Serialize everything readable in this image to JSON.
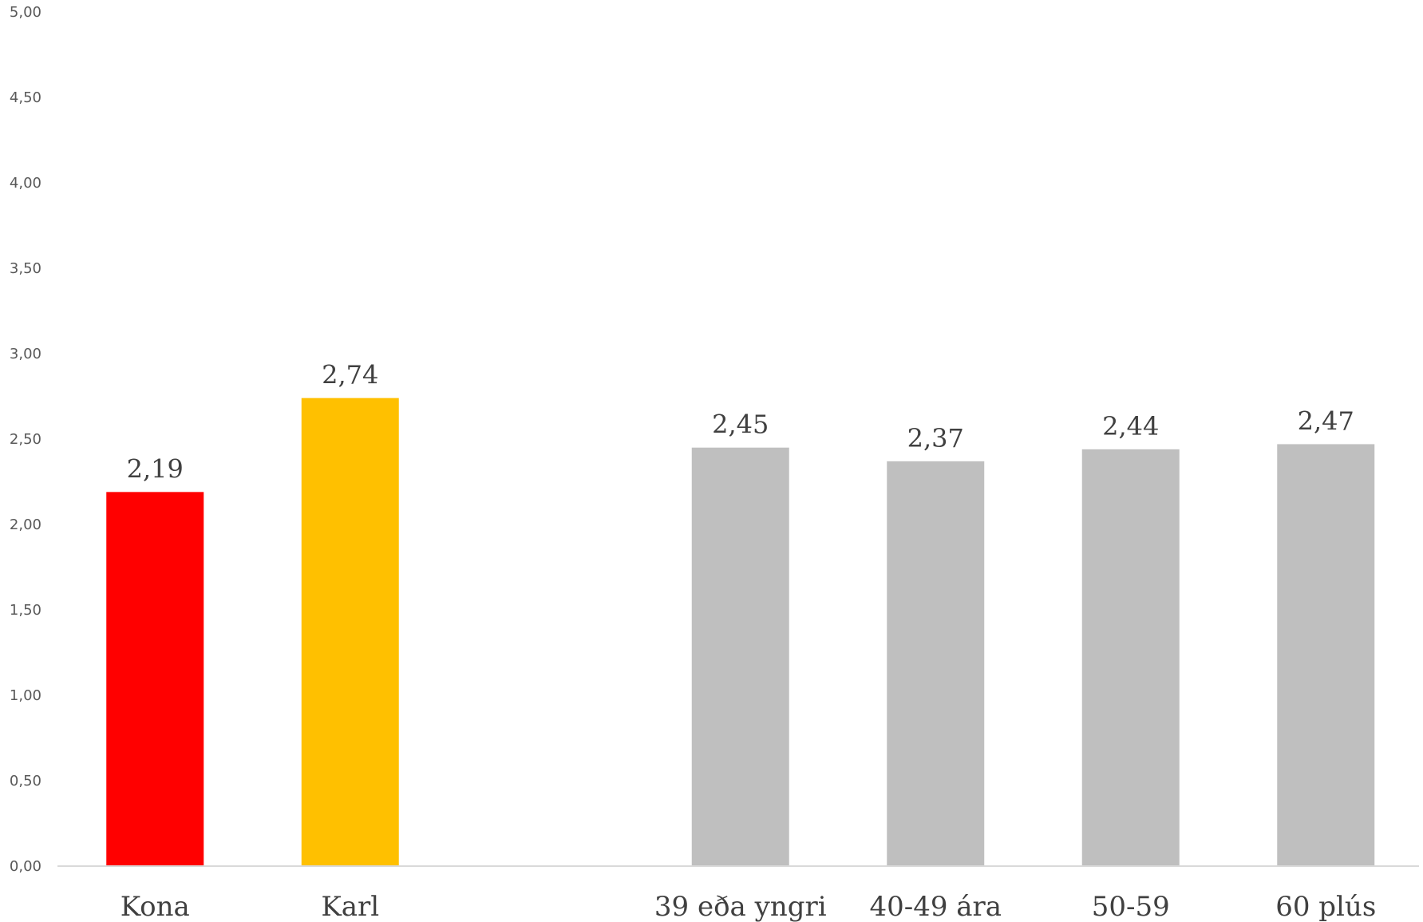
{
  "chart_data": {
    "type": "bar",
    "title": "",
    "xlabel": "",
    "ylabel": "",
    "ylim": [
      0,
      5
    ],
    "yticks": [
      "0,00",
      "0,50",
      "1,00",
      "1,50",
      "2,00",
      "2,50",
      "3,00",
      "3,50",
      "4,00",
      "4,50",
      "5,00"
    ],
    "grid": false,
    "legend": "none",
    "categories": [
      "Kona",
      "Karl",
      "",
      "39 eða yngri",
      "40-49 ára",
      "50-59",
      "60 plús"
    ],
    "values": [
      2.19,
      2.74,
      null,
      2.45,
      2.37,
      2.44,
      2.47
    ],
    "data_labels": [
      "2,19",
      "2,74",
      "",
      "2,45",
      "2,37",
      "2,44",
      "2,47"
    ],
    "colors": [
      "#FF0000",
      "#FFC000",
      "",
      "#BFBFBF",
      "#BFBFBF",
      "#BFBFBF",
      "#BFBFBF"
    ],
    "axis_color": "#D9D9D9"
  }
}
